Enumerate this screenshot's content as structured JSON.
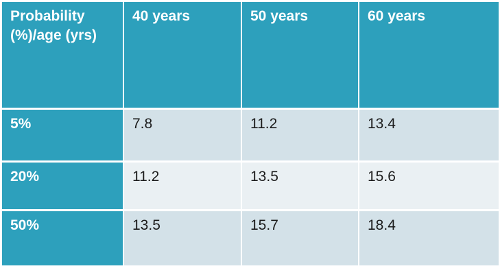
{
  "table": {
    "corner_header": "Probability (%)/age (yrs)",
    "column_headers": [
      "40 years",
      "50 years",
      "60 years"
    ],
    "rows": [
      {
        "label": "5%",
        "values": [
          "7.8",
          "11.2",
          "13.4"
        ]
      },
      {
        "label": "20%",
        "values": [
          "11.2",
          "13.5",
          "15.6"
        ]
      },
      {
        "label": "50%",
        "values": [
          "13.5",
          "15.7",
          "18.4"
        ]
      }
    ]
  },
  "colors": {
    "header_teal": "#2da0bc",
    "row_odd_bg": "#d3e1e8",
    "row_even_bg": "#eaf0f3",
    "header_text": "#ffffff",
    "cell_text": "#1b1b1b",
    "page_background": "#ffffff",
    "grid_border": "#ffffff"
  },
  "chart_data": {
    "type": "table",
    "title": "",
    "columns": [
      "Probability (%)/age (yrs)",
      "40 years",
      "50 years",
      "60 years"
    ],
    "rows": [
      [
        "5%",
        7.8,
        11.2,
        13.4
      ],
      [
        "20%",
        11.2,
        13.5,
        15.6
      ],
      [
        "50%",
        13.5,
        15.7,
        18.4
      ]
    ],
    "notes": "Teal header row and label column; data cells alternate light blue-gray backgrounds by row; white gridlines"
  }
}
